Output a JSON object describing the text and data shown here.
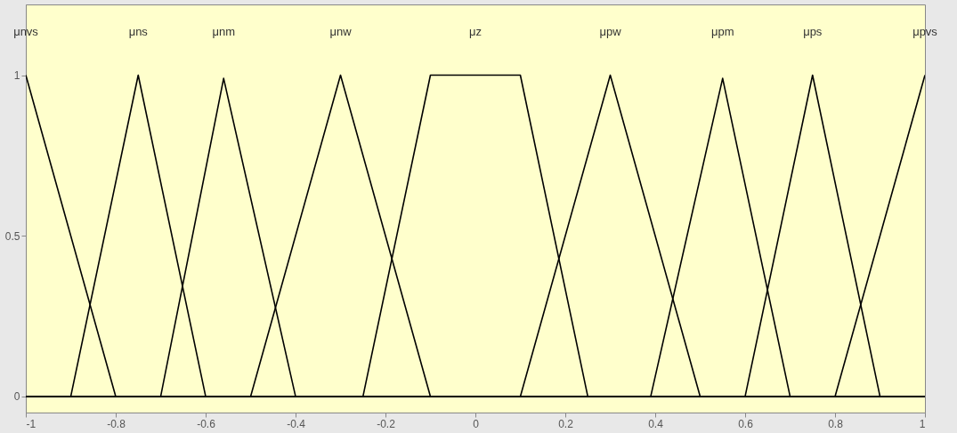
{
  "chart_data": {
    "type": "line",
    "xlim": [
      -1,
      1
    ],
    "ylim": [
      -0.05,
      1.22
    ],
    "xticks": [
      -1,
      -0.8,
      -0.6,
      -0.4,
      -0.2,
      0,
      0.2,
      0.4,
      0.6,
      0.8,
      1
    ],
    "yticks": [
      0,
      0.5,
      1
    ],
    "grid": false,
    "legend": false,
    "marker": "none",
    "line_style": "solid",
    "series": [
      {
        "color": "#000000",
        "x": [
          -1,
          -0.8,
          1
        ],
        "values": [
          1,
          0,
          0
        ]
      },
      {
        "color": "#000000",
        "x": [
          -1,
          -0.9,
          -0.75,
          -0.6,
          1
        ],
        "values": [
          0,
          0,
          1,
          0,
          0
        ]
      },
      {
        "color": "#000000",
        "x": [
          -1,
          -0.7,
          -0.56,
          -0.4,
          1
        ],
        "values": [
          0,
          0,
          0.99,
          0,
          0
        ]
      },
      {
        "color": "#000000",
        "x": [
          -1,
          -0.5,
          -0.3,
          -0.1,
          1
        ],
        "values": [
          0,
          0,
          1,
          0,
          0
        ]
      },
      {
        "color": "#000000",
        "x": [
          -1,
          -0.25,
          -0.1,
          0.1,
          0.25,
          1
        ],
        "values": [
          0,
          0,
          1,
          1,
          0,
          0
        ]
      },
      {
        "color": "#000000",
        "x": [
          -1,
          0.1,
          0.3,
          0.5,
          1
        ],
        "values": [
          0,
          0,
          1,
          0,
          0
        ]
      },
      {
        "color": "#000000",
        "x": [
          -1,
          0.39,
          0.55,
          0.7,
          1
        ],
        "values": [
          0,
          0,
          0.99,
          0,
          0
        ]
      },
      {
        "color": "#000000",
        "x": [
          -1,
          0.6,
          0.75,
          0.9,
          1
        ],
        "values": [
          0,
          0,
          1,
          0,
          0
        ]
      },
      {
        "color": "#000000",
        "x": [
          -1,
          0.8,
          1
        ],
        "values": [
          0,
          0,
          1
        ]
      }
    ],
    "annotations": [
      "μnvs",
      "μns",
      "μnm",
      "μnw",
      "μz",
      "μpw",
      "μpm",
      "μps",
      "μpvs"
    ]
  }
}
